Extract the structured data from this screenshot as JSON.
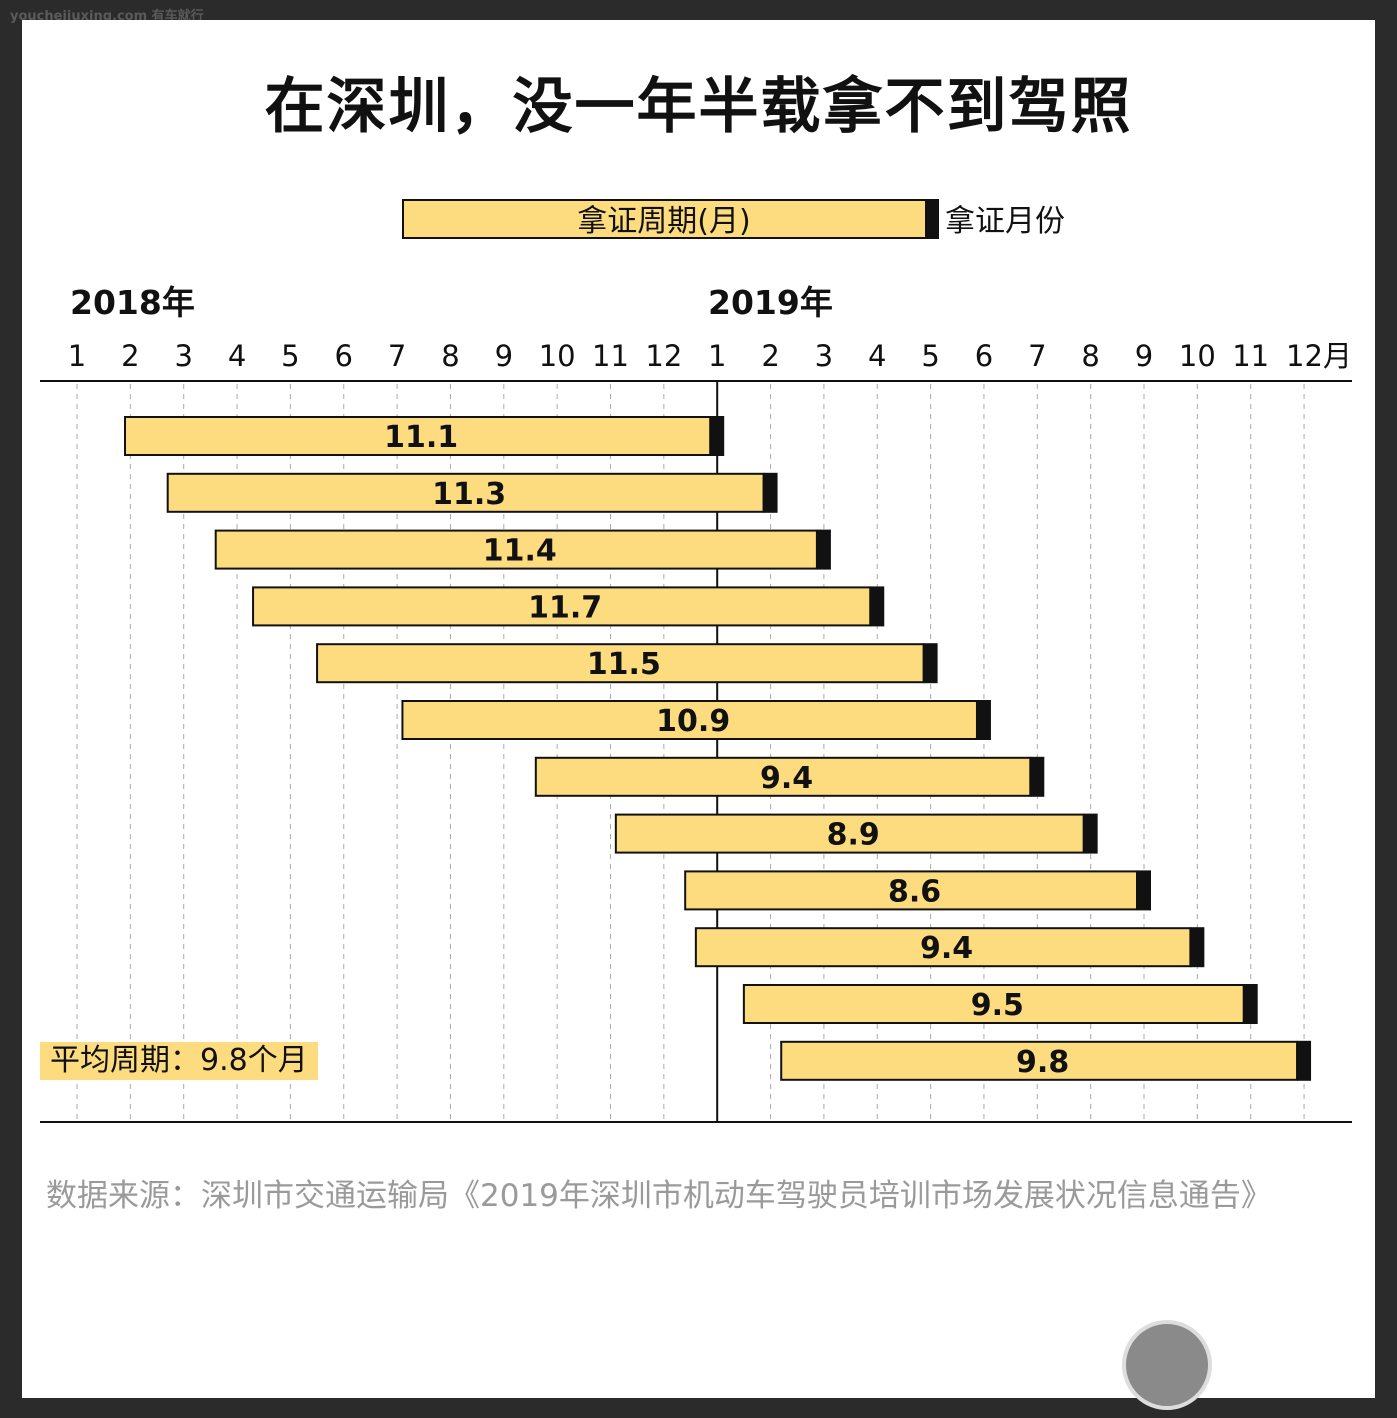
{
  "watermark": "youchejiuxing.com 有车就行",
  "chart_data": {
    "type": "bar",
    "title": "在深圳，没一年半载拿不到驾照",
    "legend": {
      "bar_label": "拿证周期(月)",
      "cap_label": "拿证月份",
      "placement": "top-center"
    },
    "year_labels": [
      "2018年",
      "2019年"
    ],
    "x_ticks": [
      "1",
      "2",
      "3",
      "4",
      "5",
      "6",
      "7",
      "8",
      "9",
      "10",
      "11",
      "12",
      "1",
      "2",
      "3",
      "4",
      "5",
      "6",
      "7",
      "8",
      "9",
      "10",
      "11",
      "12月"
    ],
    "grid": true,
    "end_month_2019": [
      1,
      2,
      3,
      4,
      5,
      6,
      7,
      8,
      9,
      10,
      11,
      12
    ],
    "values": [
      11.1,
      11.3,
      11.4,
      11.7,
      11.5,
      10.9,
      9.4,
      8.9,
      8.6,
      9.4,
      9.5,
      9.8
    ],
    "value_labels": [
      "11.1",
      "11.3",
      "11.4",
      "11.7",
      "11.5",
      "10.9",
      "9.4",
      "8.9",
      "8.6",
      "9.4",
      "9.5",
      "9.8"
    ],
    "colors": {
      "bar": "#fddc7f",
      "cap": "#111111"
    },
    "average_label": "平均周期：9.8个月",
    "source": "数据来源：深圳市交通运输局《2019年深圳市机动车驾驶员培训市场发展状况信息通告》"
  }
}
